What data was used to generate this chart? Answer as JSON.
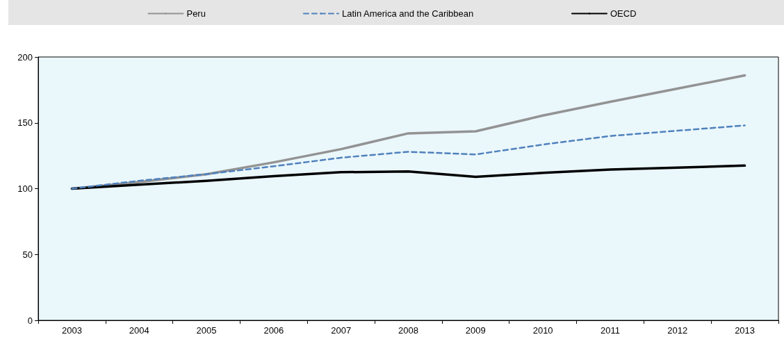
{
  "chart_data": {
    "type": "line",
    "categories": [
      "2003",
      "2004",
      "2005",
      "2006",
      "2007",
      "2008",
      "2009",
      "2010",
      "2011",
      "2012",
      "2013"
    ],
    "series": [
      {
        "name": "Peru",
        "color": "#939393",
        "line_style": "solid",
        "values": [
          100,
          105,
          111,
          120,
          130,
          142,
          143.5,
          155.5,
          166,
          176,
          186
        ]
      },
      {
        "name": "Latin America and the Caribbean",
        "color": "#4f81bd",
        "line_style": "dashed",
        "values": [
          100,
          106,
          111,
          117,
          123.5,
          128,
          126,
          133.5,
          140,
          144,
          148
        ]
      },
      {
        "name": "OECD",
        "color": "#000000",
        "line_style": "solid",
        "values": [
          100,
          103,
          106,
          109.5,
          112.5,
          113,
          109,
          112,
          114.5,
          116,
          117.5
        ]
      }
    ],
    "ylim": [
      0,
      200
    ],
    "yticks": [
      0,
      50,
      100,
      150,
      200
    ],
    "grid": false,
    "legend": "top",
    "marker": "none"
  }
}
